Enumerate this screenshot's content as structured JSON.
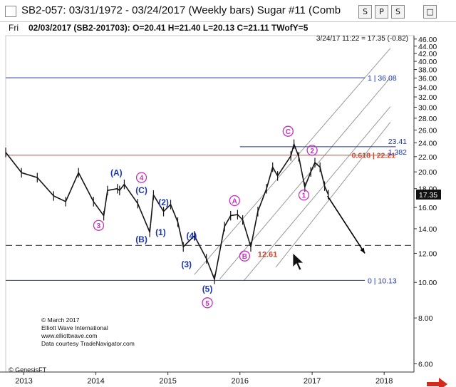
{
  "window": {
    "title": "SB2-057:  03/31/1972 - 03/24/2017  (Weekly bars)     Sugar #11 (Comb",
    "buttons": [
      "S",
      "P",
      "S",
      "□"
    ]
  },
  "info": {
    "day": "Fri",
    "bar": "02/03/2017 (SB2-201703):  O=20.41  H=21.40  L=20.13  C=21.11  TWofY=5"
  },
  "chart_data": {
    "type": "line",
    "scale": "log",
    "ylim": [
      5.7,
      47
    ],
    "x_range": [
      "2012-10",
      "2018-06"
    ],
    "y_ticks": [
      6.0,
      8.0,
      10.0,
      12.0,
      14.0,
      16.0,
      18.0,
      20.0,
      22.0,
      24.0,
      26.0,
      28.0,
      30.0,
      32.0,
      34.0,
      36.0,
      38.0,
      40.0,
      42.0,
      44.0,
      46.0
    ],
    "x_ticks": [
      "2013",
      "2014",
      "2015",
      "2016",
      "2017",
      "2018"
    ],
    "last_price_label": "17.35",
    "latest_quote": "3/24/17 11:22 = 17.35 (-0.82)",
    "price_path": [
      {
        "date": "2012-10-01",
        "price": 22.6
      },
      {
        "date": "2012-12-20",
        "price": 19.9
      },
      {
        "date": "2013-03-10",
        "price": 19.3
      },
      {
        "date": "2013-06-01",
        "price": 17.2
      },
      {
        "date": "2013-08-01",
        "price": 16.6
      },
      {
        "date": "2013-10-05",
        "price": 19.9
      },
      {
        "date": "2013-12-20",
        "price": 16.6
      },
      {
        "date": "2014-02-10",
        "price": 15.2
      },
      {
        "date": "2014-03-01",
        "price": 17.8
      },
      {
        "date": "2014-04-20",
        "price": 18.0
      },
      {
        "date": "2014-05-01",
        "price": 17.8
      },
      {
        "date": "2014-05-25",
        "price": 18.5
      },
      {
        "date": "2014-08-01",
        "price": 16.4
      },
      {
        "date": "2014-10-01",
        "price": 13.7
      },
      {
        "date": "2014-10-20",
        "price": 17.3
      },
      {
        "date": "2014-12-10",
        "price": 15.6
      },
      {
        "date": "2015-01-15",
        "price": 16.3
      },
      {
        "date": "2015-02-20",
        "price": 14.6
      },
      {
        "date": "2015-03-20",
        "price": 12.5
      },
      {
        "date": "2015-05-15",
        "price": 13.4
      },
      {
        "date": "2015-07-15",
        "price": 11.6
      },
      {
        "date": "2015-08-25",
        "price": 10.2
      },
      {
        "date": "2015-10-15",
        "price": 14.2
      },
      {
        "date": "2015-11-15",
        "price": 15.2
      },
      {
        "date": "2015-12-20",
        "price": 15.3
      },
      {
        "date": "2016-01-15",
        "price": 14.8
      },
      {
        "date": "2016-02-25",
        "price": 12.5
      },
      {
        "date": "2016-04-01",
        "price": 15.6
      },
      {
        "date": "2016-05-15",
        "price": 18.0
      },
      {
        "date": "2016-06-15",
        "price": 20.6
      },
      {
        "date": "2016-07-10",
        "price": 19.5
      },
      {
        "date": "2016-09-15",
        "price": 22.1
      },
      {
        "date": "2016-10-01",
        "price": 23.8
      },
      {
        "date": "2016-10-25",
        "price": 22.0
      },
      {
        "date": "2016-11-25",
        "price": 18.2
      },
      {
        "date": "2016-12-25",
        "price": 20.0
      },
      {
        "date": "2017-01-15",
        "price": 21.2
      },
      {
        "date": "2017-02-10",
        "price": 20.6
      },
      {
        "date": "2017-03-05",
        "price": 18.3
      },
      {
        "date": "2017-03-24",
        "price": 17.35
      }
    ],
    "horizontal_lines": [
      {
        "label": "1 | 36.08",
        "value": 36.08,
        "color": "#1a35b8",
        "from": "2012-10-01",
        "to": "2017-09-25",
        "style": "solid"
      },
      {
        "label": "0.618 | 22.21",
        "value": 22.21,
        "color": "#d0442a",
        "from": "2012-10-01",
        "to": "2018-03-01",
        "style": "solid"
      },
      {
        "label": "23.41",
        "value": 23.41,
        "color": "#1a35b8",
        "from": "2016-01-01",
        "to": "2018-03-01",
        "style": "solid"
      },
      {
        "label": "0 | 10.13",
        "value": 10.13,
        "color": "#1a35b8",
        "from": "2012-10-01",
        "to": "2017-09-25",
        "style": "solid"
      },
      {
        "label": "12.61",
        "value": 12.61,
        "color": "#555555",
        "from": "2012-10-01",
        "to": "2018-06-01",
        "style": "dashed"
      }
    ],
    "ratio_label": "1.382",
    "channel_lines": [
      {
        "from": {
          "date": "2015-05-15",
          "price": 10.5
        },
        "to": {
          "date": "2018-02-01",
          "price": 43.4
        }
      },
      {
        "from": {
          "date": "2015-09-20",
          "price": 10.2
        },
        "to": {
          "date": "2018-02-01",
          "price": 36.1
        }
      },
      {
        "from": {
          "date": "2016-01-20",
          "price": 10.1
        },
        "to": {
          "date": "2018-02-01",
          "price": 30.1
        }
      },
      {
        "from": {
          "date": "2016-07-01",
          "price": 11.0
        },
        "to": {
          "date": "2018-02-01",
          "price": 27.3
        }
      }
    ],
    "projection_arrow": {
      "from": {
        "date": "2017-03-20",
        "price": 17.2
      },
      "to": {
        "date": "2017-09-25",
        "price": 12.0
      }
    },
    "wave_labels": [
      {
        "text": "(A)",
        "date": "2014-04-15",
        "price": 19.9,
        "color": "#1a35b8",
        "circled": false
      },
      {
        "text": "4",
        "date": "2014-08-20",
        "price": 19.3,
        "color": "#c72ec2",
        "circled": true
      },
      {
        "text": "(C)",
        "date": "2014-08-20",
        "price": 17.8,
        "color": "#1a35b8",
        "circled": false
      },
      {
        "text": "(2)",
        "date": "2014-12-10",
        "price": 16.5,
        "color": "#1a35b8",
        "circled": false
      },
      {
        "text": "3",
        "date": "2014-01-15",
        "price": 14.3,
        "color": "#c72ec2",
        "circled": true
      },
      {
        "text": "(1)",
        "date": "2014-11-25",
        "price": 13.7,
        "color": "#1a35b8",
        "circled": false
      },
      {
        "text": "(B)",
        "date": "2014-08-20",
        "price": 13.1,
        "color": "#1a35b8",
        "circled": false
      },
      {
        "text": "(4)",
        "date": "2015-05-01",
        "price": 13.4,
        "color": "#1a35b8",
        "circled": false
      },
      {
        "text": "(3)",
        "date": "2015-04-05",
        "price": 11.2,
        "color": "#1a35b8",
        "circled": false
      },
      {
        "text": "(5)",
        "date": "2015-07-20",
        "price": 9.6,
        "color": "#1a35b8",
        "circled": false
      },
      {
        "text": "5",
        "date": "2015-07-20",
        "price": 8.8,
        "color": "#c72ec2",
        "circled": true
      },
      {
        "text": "A",
        "date": "2015-12-05",
        "price": 16.7,
        "color": "#c72ec2",
        "circled": true
      },
      {
        "text": "B",
        "date": "2016-01-25",
        "price": 11.8,
        "color": "#c72ec2",
        "circled": true
      },
      {
        "text": "C",
        "date": "2016-09-01",
        "price": 25.8,
        "color": "#c72ec2",
        "circled": true
      },
      {
        "text": "2",
        "date": "2017-01-01",
        "price": 22.9,
        "color": "#c72ec2",
        "circled": true
      },
      {
        "text": "1",
        "date": "2016-11-20",
        "price": 17.3,
        "color": "#c72ec2",
        "circled": true
      }
    ],
    "copyright": [
      "© March 2017",
      "Elliott Wave International",
      "www.elliottwave.com",
      "Data courtesy TradeNavigator.com"
    ],
    "watermark": "© GenesisFT"
  },
  "colors": {
    "price": "#151515",
    "wave_blue": "#1a35b8",
    "wave_magenta": "#c72ec2",
    "fib": "#d0442a",
    "channel": "#9a9a9a",
    "label_red": "#d0442a"
  }
}
